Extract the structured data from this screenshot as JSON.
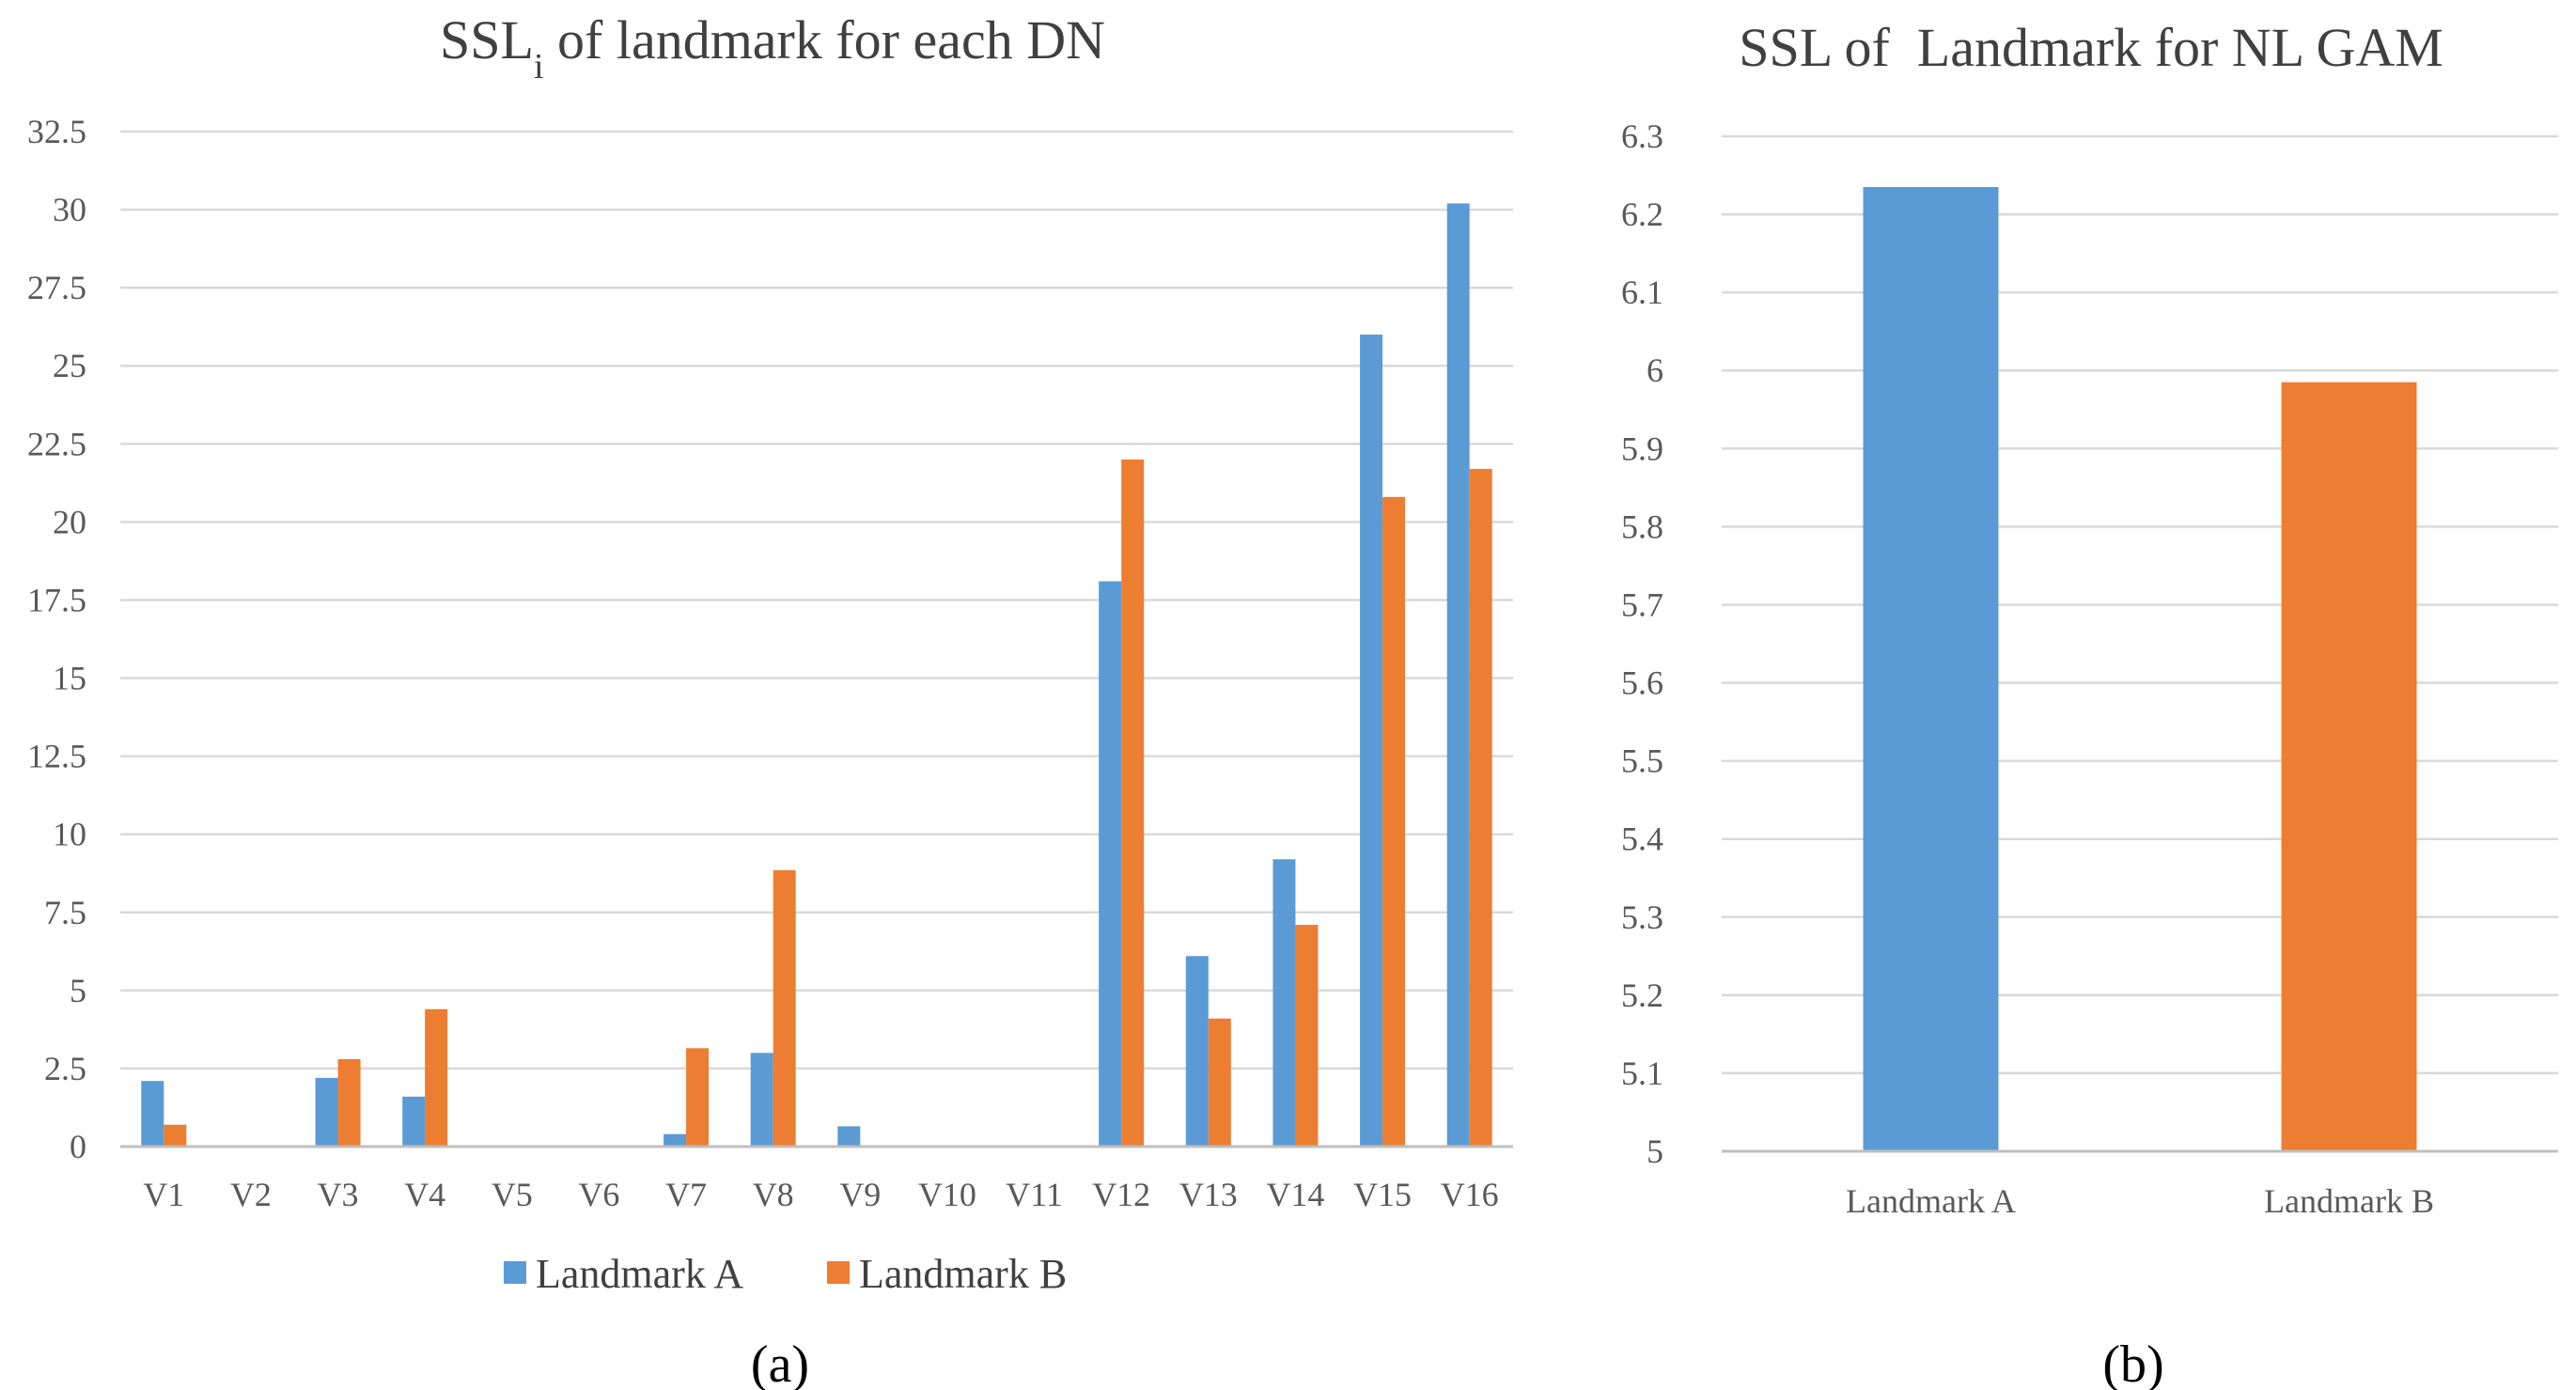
{
  "colors": {
    "series_a": "#5B9BD5",
    "series_b": "#ED7D31"
  },
  "chart_data": [
    {
      "type": "bar",
      "title_main": "SSL",
      "title_sub": "i",
      "title_rest": " of landmark for each DN",
      "panel_label": "(a)",
      "categories": [
        "V1",
        "V2",
        "V3",
        "V4",
        "V5",
        "V6",
        "V7",
        "V8",
        "V9",
        "V10",
        "V11",
        "V12",
        "V13",
        "V14",
        "V15",
        "V16"
      ],
      "series": [
        {
          "name": "Landmark A",
          "values": [
            2.1,
            0,
            2.2,
            1.6,
            0,
            0,
            0.4,
            3.0,
            0.65,
            0,
            0,
            18.1,
            6.1,
            9.2,
            26.0,
            30.2
          ]
        },
        {
          "name": "Landmark B",
          "values": [
            0.7,
            0,
            2.8,
            4.4,
            0,
            0,
            3.15,
            8.85,
            0,
            0,
            0,
            22.0,
            4.1,
            7.1,
            20.8,
            21.7
          ]
        }
      ],
      "ylim": [
        0,
        32.5
      ],
      "yticks": [
        "0",
        "2.5",
        "5",
        "7.5",
        "10",
        "12.5",
        "15",
        "17.5",
        "20",
        "22.5",
        "25",
        "27.5",
        "30",
        "32.5"
      ],
      "legend_position": "bottom",
      "grid": true
    },
    {
      "type": "bar",
      "title": "SSL of  Landmark for NL GAM",
      "panel_label": "(b)",
      "categories": [
        "Landmark A",
        "Landmark B"
      ],
      "values": [
        6.235,
        5.985
      ],
      "ylim": [
        5,
        6.3
      ],
      "yticks": [
        "5",
        "5.1",
        "5.2",
        "5.3",
        "5.4",
        "5.5",
        "5.6",
        "5.7",
        "5.8",
        "5.9",
        "6",
        "6.1",
        "6.2",
        "6.3"
      ],
      "grid": true
    }
  ]
}
